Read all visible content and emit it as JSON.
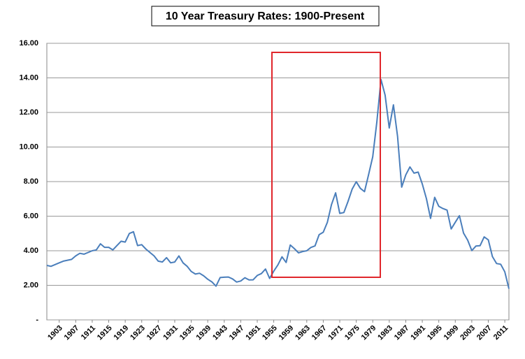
{
  "chart_data": {
    "type": "line",
    "title": "10 Year Treasury Rates: 1900-Present",
    "x": [
      1900,
      1901,
      1902,
      1903,
      1904,
      1905,
      1906,
      1907,
      1908,
      1909,
      1910,
      1911,
      1912,
      1913,
      1914,
      1915,
      1916,
      1917,
      1918,
      1919,
      1920,
      1921,
      1922,
      1923,
      1924,
      1925,
      1926,
      1927,
      1928,
      1929,
      1930,
      1931,
      1932,
      1933,
      1934,
      1935,
      1936,
      1937,
      1938,
      1939,
      1940,
      1941,
      1942,
      1943,
      1944,
      1945,
      1946,
      1947,
      1948,
      1949,
      1950,
      1951,
      1952,
      1953,
      1954,
      1955,
      1956,
      1957,
      1958,
      1959,
      1960,
      1961,
      1962,
      1963,
      1964,
      1965,
      1966,
      1967,
      1968,
      1969,
      1970,
      1971,
      1972,
      1973,
      1974,
      1975,
      1976,
      1977,
      1978,
      1979,
      1980,
      1981,
      1982,
      1983,
      1984,
      1985,
      1986,
      1987,
      1988,
      1989,
      1990,
      1991,
      1992,
      1993,
      1994,
      1995,
      1996,
      1997,
      1998,
      1999,
      2000,
      2001,
      2002,
      2003,
      2004,
      2005,
      2006,
      2007,
      2008,
      2009,
      2010,
      2011,
      2012
    ],
    "series": [
      {
        "color": "#4a7ebb",
        "values": [
          3.15,
          3.1,
          3.2,
          3.3,
          3.4,
          3.45,
          3.5,
          3.7,
          3.85,
          3.8,
          3.9,
          4.0,
          4.05,
          4.4,
          4.2,
          4.2,
          4.05,
          4.3,
          4.55,
          4.5,
          5.0,
          5.1,
          4.3,
          4.35,
          4.1,
          3.9,
          3.7,
          3.4,
          3.35,
          3.6,
          3.3,
          3.35,
          3.7,
          3.3,
          3.1,
          2.8,
          2.65,
          2.7,
          2.55,
          2.35,
          2.2,
          1.95,
          2.45,
          2.47,
          2.48,
          2.37,
          2.19,
          2.25,
          2.44,
          2.31,
          2.32,
          2.57,
          2.68,
          2.94,
          2.4,
          2.82,
          3.18,
          3.65,
          3.32,
          4.33,
          4.12,
          3.88,
          3.95,
          4.0,
          4.19,
          4.28,
          4.93,
          5.07,
          5.65,
          6.67,
          7.35,
          6.16,
          6.21,
          6.85,
          7.56,
          7.99,
          7.61,
          7.42,
          8.41,
          9.44,
          11.46,
          13.91,
          13.0,
          11.1,
          12.44,
          10.62,
          7.68,
          8.39,
          8.85,
          8.49,
          8.55,
          7.86,
          7.01,
          5.87,
          7.09,
          6.57,
          6.44,
          6.35,
          5.26,
          5.65,
          6.03,
          5.02,
          4.61,
          4.01,
          4.27,
          4.29,
          4.8,
          4.63,
          3.66,
          3.26,
          3.22,
          2.78,
          1.8
        ]
      }
    ],
    "xlim": [
      1900,
      2012
    ],
    "xticks": [
      1903,
      1907,
      1911,
      1915,
      1919,
      1923,
      1927,
      1931,
      1935,
      1939,
      1943,
      1947,
      1951,
      1955,
      1959,
      1963,
      1967,
      1971,
      1975,
      1979,
      1983,
      1987,
      1991,
      1995,
      1999,
      2003,
      2007,
      2011
    ],
    "ylim": [
      0,
      16
    ],
    "yticks": [
      {
        "value": 0,
        "label": "-"
      },
      {
        "value": 2,
        "label": "2.00"
      },
      {
        "value": 4,
        "label": "4.00"
      },
      {
        "value": 6,
        "label": "6.00"
      },
      {
        "value": 8,
        "label": "8.00"
      },
      {
        "value": 10,
        "label": "10.00"
      },
      {
        "value": 12,
        "label": "12.00"
      },
      {
        "value": 14,
        "label": "14.00"
      },
      {
        "value": 16,
        "label": "16.00"
      }
    ],
    "grid": true
  }
}
